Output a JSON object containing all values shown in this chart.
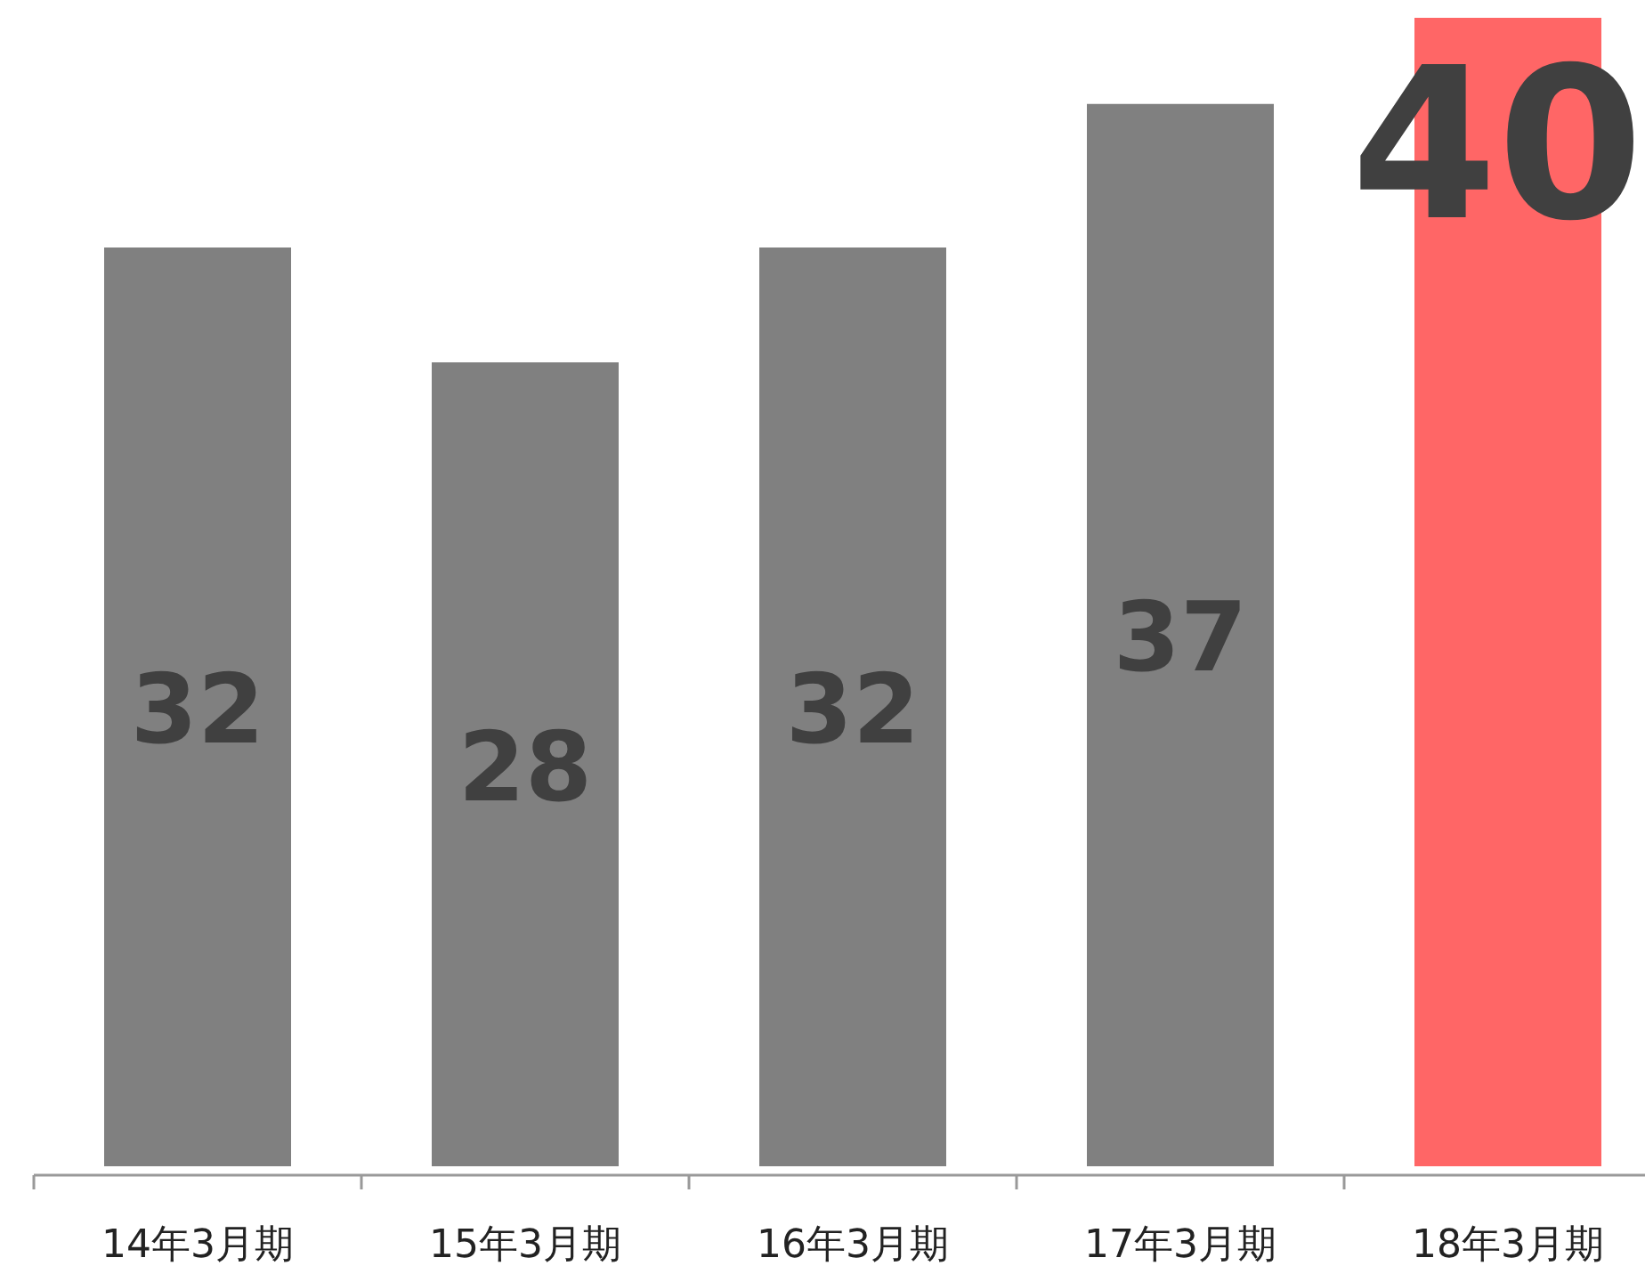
{
  "chart_data": {
    "type": "bar",
    "categories": [
      "14年3月期",
      "15年3月期",
      "16年3月期",
      "17年3月期",
      "18年3月期"
    ],
    "values": [
      32,
      28,
      32,
      37,
      40
    ],
    "colors": [
      "#808080",
      "#808080",
      "#808080",
      "#808080",
      "#ff6666"
    ],
    "data_labels": true
  }
}
